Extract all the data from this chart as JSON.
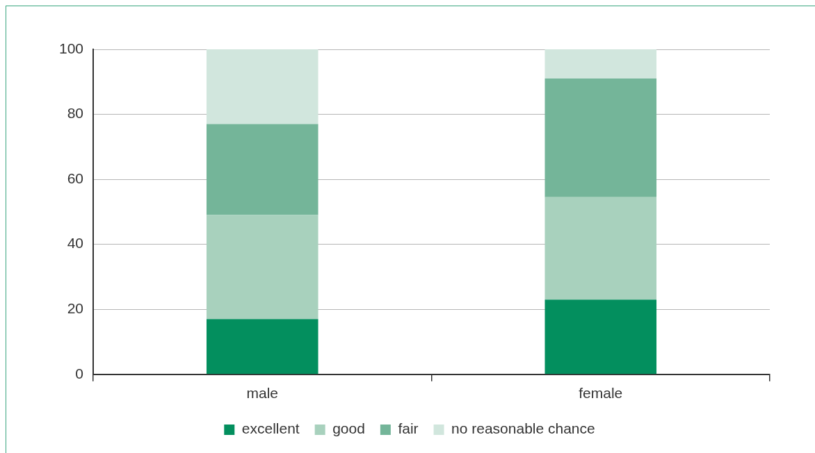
{
  "chart_data": {
    "type": "bar",
    "stacked": true,
    "categories": [
      "male",
      "female"
    ],
    "series": [
      {
        "name": "excellent",
        "color": "#038f5e",
        "values": [
          17,
          23
        ]
      },
      {
        "name": "good",
        "color": "#a8d1bd",
        "values": [
          32,
          31.5
        ]
      },
      {
        "name": "fair",
        "color": "#74b599",
        "values": [
          28,
          36.5
        ]
      },
      {
        "name": "no reasonable chance",
        "color": "#d1e6dd",
        "values": [
          23,
          9
        ]
      }
    ],
    "ylim": [
      0,
      100
    ],
    "yticks": [
      0,
      20,
      40,
      60,
      80,
      100
    ],
    "grid": "y",
    "legend": "bottom"
  }
}
